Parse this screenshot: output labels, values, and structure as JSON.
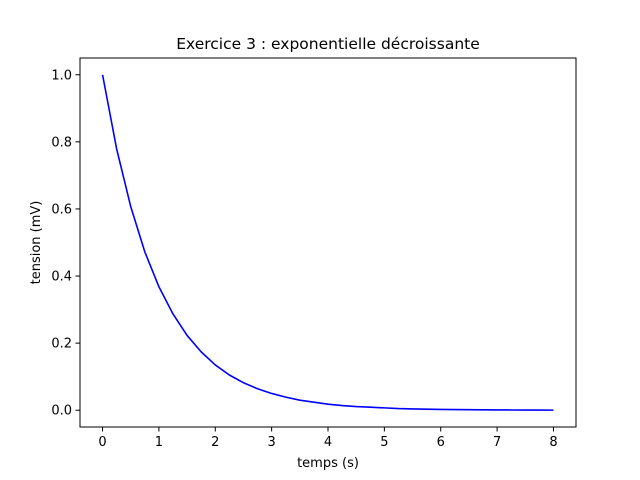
{
  "chart_data": {
    "type": "line",
    "title": "Exercice 3 : exponentielle décroissante",
    "xlabel": "temps (s)",
    "ylabel": "tension (mV)",
    "xlim": [
      -0.4,
      8.4
    ],
    "ylim": [
      -0.05,
      1.05
    ],
    "xticks": [
      0,
      1,
      2,
      3,
      4,
      5,
      6,
      7,
      8
    ],
    "xtick_labels": [
      "0",
      "1",
      "2",
      "3",
      "4",
      "5",
      "6",
      "7",
      "8"
    ],
    "yticks": [
      0.0,
      0.2,
      0.4,
      0.6,
      0.8,
      1.0
    ],
    "ytick_labels": [
      "0.0",
      "0.2",
      "0.4",
      "0.6",
      "0.8",
      "1.0"
    ],
    "grid": false,
    "series": [
      {
        "color": "#0000ff",
        "x": [
          0,
          0.25,
          0.5,
          0.75,
          1,
          1.25,
          1.5,
          1.75,
          2,
          2.25,
          2.5,
          2.75,
          3,
          3.25,
          3.5,
          3.75,
          4,
          4.25,
          4.5,
          4.75,
          5,
          5.25,
          5.5,
          5.75,
          6,
          6.25,
          6.5,
          6.75,
          7,
          7.25,
          7.5,
          7.75,
          8
        ],
        "y": [
          1.0,
          0.779,
          0.607,
          0.472,
          0.368,
          0.287,
          0.223,
          0.174,
          0.135,
          0.105,
          0.082,
          0.064,
          0.05,
          0.039,
          0.03,
          0.024,
          0.018,
          0.014,
          0.011,
          0.009,
          0.007,
          0.005,
          0.004,
          0.003,
          0.0025,
          0.0019,
          0.0015,
          0.0012,
          0.0009,
          0.0007,
          0.0006,
          0.0004,
          0.0003
        ]
      }
    ]
  }
}
